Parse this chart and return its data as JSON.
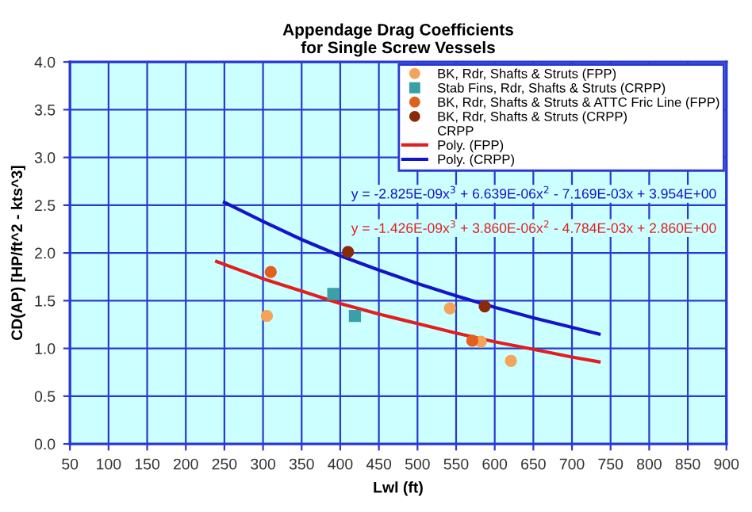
{
  "chart_data": {
    "type": "scatter",
    "title": "Appendage Drag Coefficients\nfor Single Screw Vessels",
    "xlabel": "Lwl (ft)",
    "ylabel": "CD(AP) [HP/ft^2 - kts^3]",
    "xlim": [
      50,
      900
    ],
    "xticks": [
      50,
      100,
      150,
      200,
      250,
      300,
      350,
      400,
      450,
      500,
      550,
      600,
      650,
      700,
      750,
      800,
      850,
      900
    ],
    "ylim": [
      0,
      4
    ],
    "yticks": [
      {
        "value": 0,
        "label": "0.0"
      },
      {
        "value": 0.5,
        "label": "0.5"
      },
      {
        "value": 1,
        "label": "1.0"
      },
      {
        "value": 1.5,
        "label": "1.5"
      },
      {
        "value": 2,
        "label": "2.0"
      },
      {
        "value": 2.5,
        "label": "2.5"
      },
      {
        "value": 3,
        "label": "3.0"
      },
      {
        "value": 3.5,
        "label": "3.5"
      },
      {
        "value": 4,
        "label": "4.0"
      }
    ],
    "grid": true,
    "legend": "top right",
    "series": [
      {
        "name": "BK, Rdr, Shafts & Struts (FPP)",
        "marker": "circle",
        "color": "#f5a35a",
        "x": [
          305,
          542,
          582,
          621
        ],
        "values": [
          1.34,
          1.42,
          1.07,
          0.87
        ]
      },
      {
        "name": "Stab Fins, Rdr, Shafts & Struts (CRPP)",
        "marker": "square",
        "color": "#3aa0a8",
        "x": [
          391,
          419
        ],
        "values": [
          1.57,
          1.34
        ]
      },
      {
        "name": "BK, Rdr, Shafts & Struts & ATTC Fric Line (FPP)",
        "marker": "circle",
        "color": "#e0601c",
        "x": [
          310,
          571
        ],
        "values": [
          1.8,
          1.08
        ]
      },
      {
        "name": "BK, Rdr, Shafts & Struts (CRPP)",
        "marker": "circle",
        "color": "#8b2a0a",
        "x": [
          410,
          587
        ],
        "values": [
          2.01,
          1.44
        ]
      },
      {
        "name": "CRPP"
      },
      {
        "name": "Poly. (FPP)",
        "type": "line",
        "marker": "none",
        "color": "#e02020",
        "x": [
          240,
          300,
          350,
          400,
          450,
          500,
          550,
          600,
          650,
          700,
          735
        ],
        "values": [
          1.91,
          1.73,
          1.6,
          1.47,
          1.36,
          1.26,
          1.16,
          1.07,
          0.99,
          0.91,
          0.86
        ]
      },
      {
        "name": "Poly. (CRPP)",
        "type": "line",
        "marker": "none",
        "color": "#1414c8",
        "x": [
          250,
          300,
          350,
          400,
          450,
          500,
          550,
          600,
          650,
          700,
          735
        ],
        "values": [
          2.53,
          2.33,
          2.14,
          1.97,
          1.82,
          1.68,
          1.55,
          1.43,
          1.32,
          1.22,
          1.15
        ]
      }
    ],
    "annotations": [
      "y = -2.825E-09x$^{3}$ + 6.639E-06x$^{2}$ - 7.169E-03x + 3.954E+00",
      "y = -1.426E-09x$^{3}$ + 3.860E-06x$^{2}$ - 4.784E-03x + 2.860E+00"
    ]
  }
}
